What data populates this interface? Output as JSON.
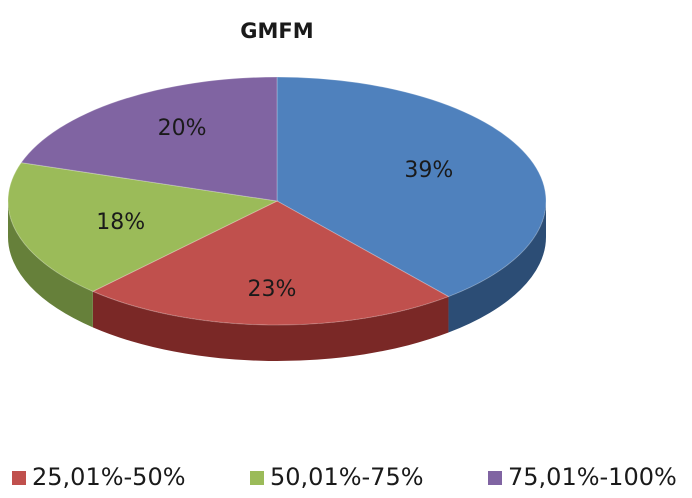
{
  "chart_data": {
    "type": "pie",
    "title": "GMFM",
    "categories": [
      null,
      "25,01%-50%",
      "50,01%-75%",
      "75,01%-100%"
    ],
    "values": [
      39,
      23,
      18,
      20
    ],
    "value_labels": [
      "39%",
      "23%",
      "18%",
      "20%"
    ],
    "colors": [
      "#4f81bd",
      "#c0504d",
      "#9bbb59",
      "#8064a2"
    ],
    "side_colors": [
      "#2c4d75",
      "#7a2826",
      "#66803a",
      "#553f70"
    ],
    "legend": "bottom"
  }
}
